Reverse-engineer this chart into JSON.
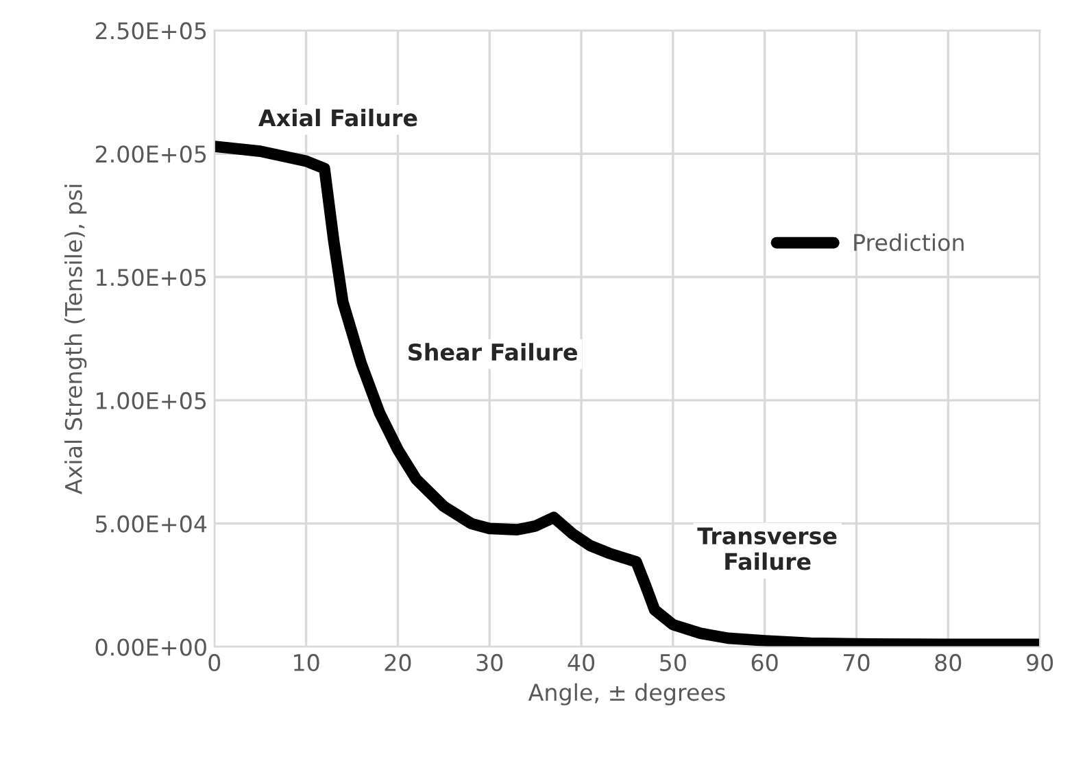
{
  "chart_data": {
    "type": "line",
    "xlabel": "Angle, ± degrees",
    "ylabel": "Axial Strength (Tensile), psi",
    "series": [
      {
        "name": "Prediction",
        "color": "#000000",
        "x": [
          0,
          5,
          10,
          12,
          13,
          14,
          16,
          18,
          20,
          22,
          25,
          28,
          30,
          33,
          35,
          37,
          39,
          41,
          43,
          46,
          47,
          48,
          50,
          53,
          56,
          60,
          65,
          70,
          80,
          90
        ],
        "values": [
          203000,
          201000,
          197000,
          194000,
          165000,
          140000,
          115000,
          95000,
          80000,
          68000,
          57000,
          50000,
          48000,
          47500,
          49000,
          52500,
          46000,
          41000,
          38000,
          34500,
          25000,
          15000,
          9000,
          5500,
          3500,
          2500,
          1500,
          1200,
          1000,
          1000
        ]
      }
    ],
    "xlim": [
      0,
      90
    ],
    "xticks": [
      0,
      10,
      20,
      30,
      40,
      50,
      60,
      70,
      80,
      90
    ],
    "ylim": [
      0,
      250000
    ],
    "yticks": [
      {
        "value": 0,
        "label": "0.00E+00"
      },
      {
        "value": 50000,
        "label": "5.00E+04"
      },
      {
        "value": 100000,
        "label": "1.00E+05"
      },
      {
        "value": 150000,
        "label": "1.50E+05"
      },
      {
        "value": 200000,
        "label": "2.00E+05"
      },
      {
        "value": 250000,
        "label": "2.50E+05"
      }
    ],
    "annotations": [
      "Axial Failure",
      "Shear Failure",
      "Transverse\nFailure"
    ],
    "grid": true,
    "legend": "top right",
    "marker": "none",
    "line_style": "solid"
  }
}
